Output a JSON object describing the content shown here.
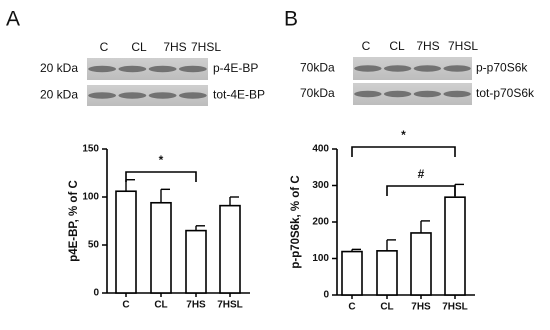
{
  "panels": [
    "A",
    "B"
  ],
  "blots": [
    {
      "lanes": [
        "C",
        "CL",
        "7HS",
        "7HSL"
      ],
      "rows": [
        {
          "marker": "20 kDa",
          "label": "p-4E-BP"
        },
        {
          "marker": "20 kDa",
          "label": "tot-4E-BP"
        }
      ]
    },
    {
      "lanes": [
        "C",
        "CL",
        "7HS",
        "7HSL"
      ],
      "rows": [
        {
          "marker": "70kDa",
          "label": "p-p70S6k"
        },
        {
          "marker": "70kDa",
          "label": "tot-p70S6k"
        }
      ]
    }
  ],
  "chart_data": [
    {
      "type": "bar",
      "ylabel": "p4E-BP, % of C",
      "categories": [
        "C",
        "CL",
        "7HS",
        "7HSL"
      ],
      "values": [
        106,
        94,
        65,
        91
      ],
      "errors": [
        12,
        14,
        5,
        9
      ],
      "color": "#ffffff",
      "ylim": [
        0,
        150
      ],
      "yticks": [
        0,
        50,
        100,
        150
      ],
      "annotations": [
        {
          "text": "*",
          "from": "C",
          "to": "7HS"
        }
      ]
    },
    {
      "type": "bar",
      "ylabel": "p-p70S6k, % of C",
      "categories": [
        "C",
        "CL",
        "7HS",
        "7HSL"
      ],
      "values": [
        119,
        121,
        170,
        268
      ],
      "errors": [
        6,
        30,
        33,
        35
      ],
      "color": "#ffffff",
      "ylim": [
        0,
        400
      ],
      "yticks": [
        0,
        100,
        200,
        300,
        400
      ],
      "annotations": [
        {
          "text": "*",
          "from": "C",
          "to": "7HSL"
        },
        {
          "text": "#",
          "from": "CL",
          "to": "7HSL"
        }
      ]
    }
  ]
}
